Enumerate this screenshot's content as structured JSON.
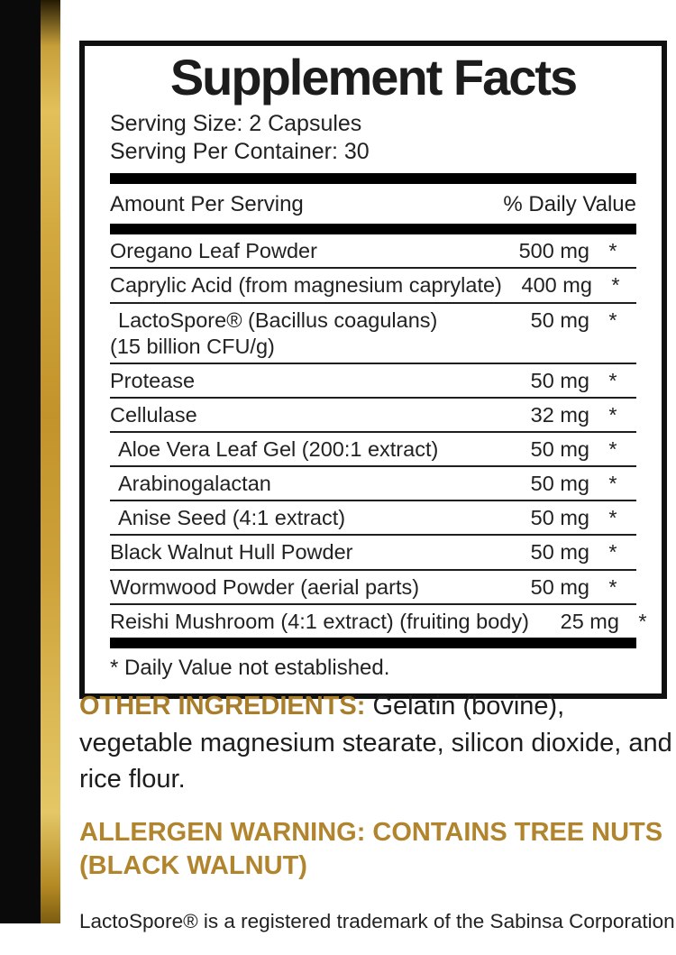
{
  "colors": {
    "side_bar_black": "#0a0a0a",
    "gold_stripe_mid": "#c2932a",
    "gold_stripe_light": "#e4c766",
    "other_ingredients_gold": "#a87e2b",
    "allergen_gold": "#b1842e",
    "panel_border": "#101010"
  },
  "panel": {
    "title": "Supplement Facts",
    "serving_size": "Serving Size: 2 Capsules",
    "servings_per_container": "Serving Per Container: 30",
    "header": {
      "amount_label": "Amount Per Serving",
      "daily_value_label": "% Daily Value"
    },
    "rows": [
      {
        "name": "Oregano Leaf Powder",
        "amount": "500 mg",
        "dv": "*"
      },
      {
        "name": "Caprylic Acid (from magnesium caprylate)",
        "amount": "400 mg",
        "dv": "*"
      },
      {
        "name": "LactoSpore® (Bacillus coagulans)",
        "name2": "(15 billion CFU/g)",
        "amount": "50 mg",
        "dv": "*",
        "indent": true
      },
      {
        "name": "Protease",
        "amount": "50 mg",
        "dv": "*"
      },
      {
        "name": "Cellulase",
        "amount": "32 mg",
        "dv": "*"
      },
      {
        "name": "Aloe Vera Leaf Gel (200:1 extract)",
        "amount": "50 mg",
        "dv": "*",
        "indent": true
      },
      {
        "name": "Arabinogalactan",
        "amount": "50 mg",
        "dv": "*",
        "indent": true
      },
      {
        "name": "Anise Seed (4:1 extract)",
        "amount": "50 mg",
        "dv": "*",
        "indent": true
      },
      {
        "name": "Black Walnut Hull Powder",
        "amount": "50 mg",
        "dv": "*"
      },
      {
        "name": "Wormwood Powder (aerial parts)",
        "amount": "50 mg",
        "dv": "*"
      },
      {
        "name": "Reishi Mushroom (4:1 extract) (fruiting body)",
        "amount": "25 mg",
        "dv": "*"
      }
    ],
    "footnote": "* Daily Value not established."
  },
  "other_ingredients": {
    "label": "OTHER INGREDIENTS:",
    "text": " Gelatin (bovine), vegetable magnesium stearate, silicon dioxide, and rice flour."
  },
  "allergen_warning": {
    "text": "ALLERGEN WARNING: CONTAINS TREE NUTS (BLACK WALNUT)"
  },
  "trademark_note": "LactoSpore® is a registered trademark of the Sabinsa Corporation"
}
